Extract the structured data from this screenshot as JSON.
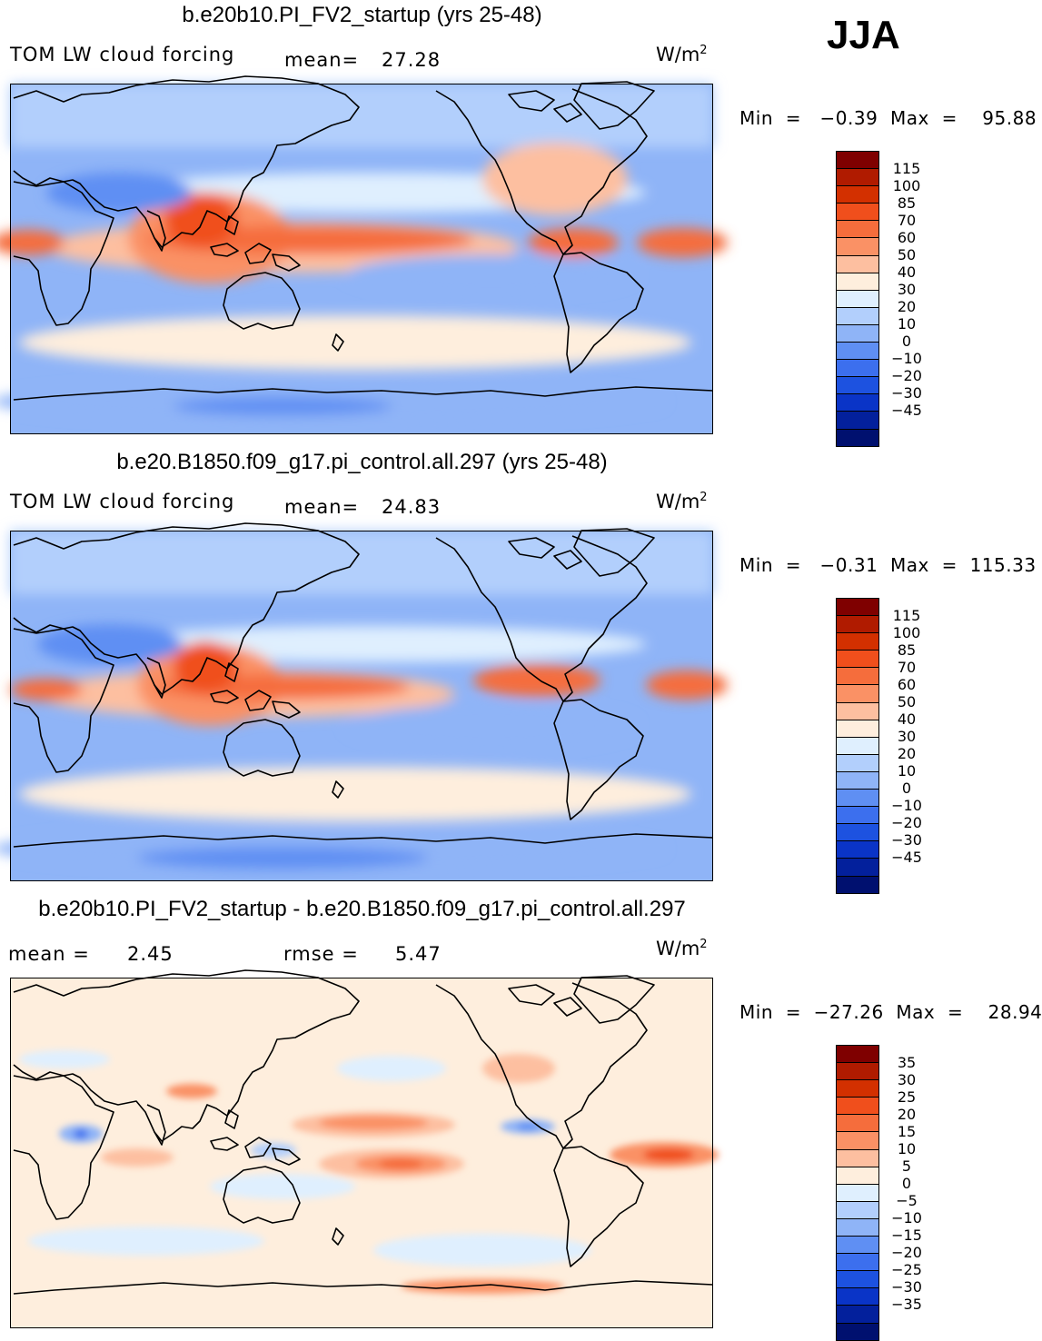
{
  "season": "JJA",
  "panels": [
    {
      "title": "b.e20b10.PI_FV2_startup (yrs 25-48)",
      "left_label": "TOM LW cloud forcing",
      "mid_label": "mean=",
      "mid_value": "27.28",
      "units": "W/m",
      "units_sup": "2",
      "minmax": "Min  =   −0.39  Max  =    95.88",
      "colorbar": {
        "colors": [
          "#7f0000",
          "#b01b00",
          "#d33000",
          "#f04f1c",
          "#f56d3c",
          "#fa9165",
          "#fdbfa0",
          "#feeedd",
          "#dfeffe",
          "#b2cffc",
          "#8fb4f7",
          "#5f8ff3",
          "#3c6fee",
          "#1d52e0",
          "#0a34c7",
          "#03209c",
          "#00106f"
        ],
        "ticks": [
          "115",
          "100",
          "85",
          "70",
          "60",
          "50",
          "40",
          "30",
          "20",
          "10",
          "0",
          "−10",
          "−20",
          "−30",
          "−45"
        ]
      }
    },
    {
      "title": "b.e20.B1850.f09_g17.pi_control.all.297 (yrs 25-48)",
      "left_label": "TOM LW cloud forcing",
      "mid_label": "mean=",
      "mid_value": "24.83",
      "units": "W/m",
      "units_sup": "2",
      "minmax": "Min  =   −0.31  Max  =  115.33",
      "colorbar": {
        "colors": [
          "#7f0000",
          "#b01b00",
          "#d33000",
          "#f04f1c",
          "#f56d3c",
          "#fa9165",
          "#fdbfa0",
          "#feeedd",
          "#dfeffe",
          "#b2cffc",
          "#8fb4f7",
          "#5f8ff3",
          "#3c6fee",
          "#1d52e0",
          "#0a34c7",
          "#03209c",
          "#00106f"
        ],
        "ticks": [
          "115",
          "100",
          "85",
          "70",
          "60",
          "50",
          "40",
          "30",
          "20",
          "10",
          "0",
          "−10",
          "−20",
          "−30",
          "−45"
        ]
      }
    },
    {
      "title": "b.e20b10.PI_FV2_startup - b.e20.B1850.f09_g17.pi_control.all.297",
      "left_label": "mean  =",
      "left_value": "2.45",
      "mid_label": "rmse  =",
      "mid_value": "5.47",
      "units": "W/m",
      "units_sup": "2",
      "minmax": "Min  =  −27.26  Max  =    28.94",
      "colorbar": {
        "colors": [
          "#7f0000",
          "#b01b00",
          "#d33000",
          "#f04f1c",
          "#f56d3c",
          "#fa9165",
          "#fdbfa0",
          "#feeedd",
          "#dfeffe",
          "#b2cffc",
          "#8fb4f7",
          "#5f8ff3",
          "#3c6fee",
          "#1d52e0",
          "#0a34c7",
          "#03209c",
          "#00106f"
        ],
        "ticks": [
          "35",
          "30",
          "25",
          "20",
          "15",
          "10",
          "5",
          "0",
          "−5",
          "−10",
          "−15",
          "−20",
          "−25",
          "−30",
          "−35"
        ]
      }
    }
  ]
}
